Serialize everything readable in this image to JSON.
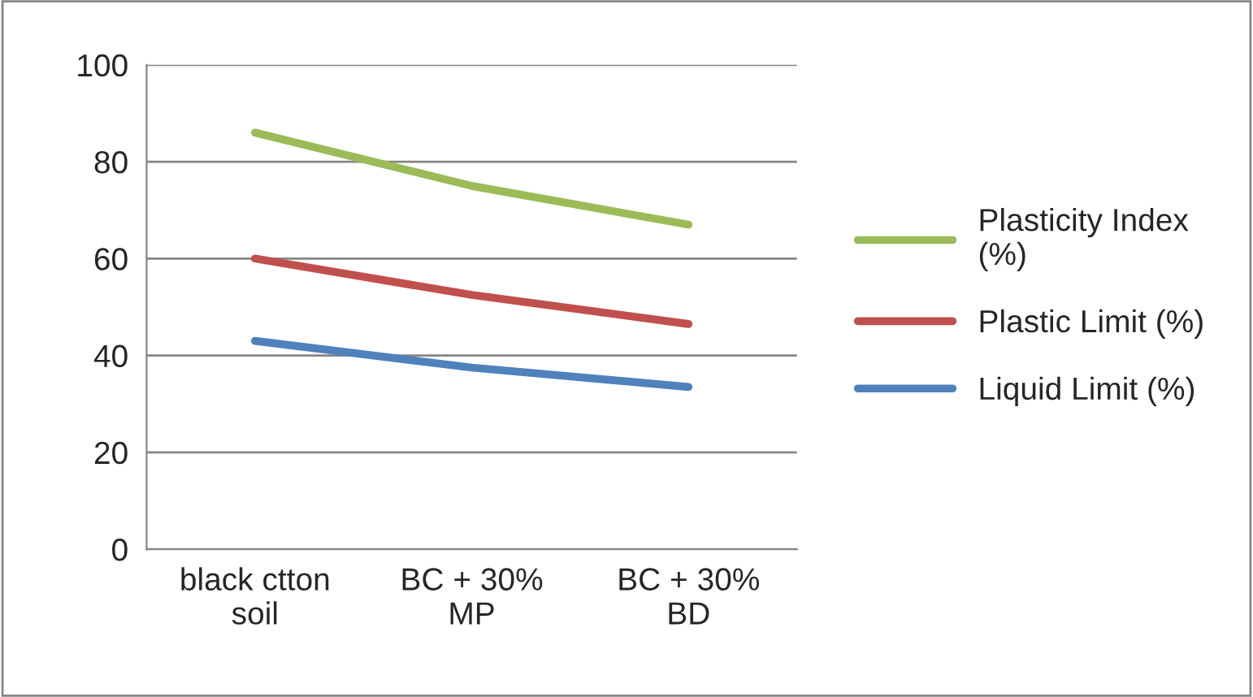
{
  "chart_data": {
    "type": "line",
    "categories": [
      "black ctton\nsoil",
      "BC + 30%\nMP",
      "BC + 30%\nBD"
    ],
    "series": [
      {
        "name": "Plasticity Index\n(%)",
        "color": "#9bbb59",
        "values": [
          86,
          75,
          67
        ]
      },
      {
        "name": "Plastic Limit (%)",
        "color": "#c0504d",
        "values": [
          60,
          52.5,
          46.5
        ]
      },
      {
        "name": "Liquid Limit (%)",
        "color": "#4f81bd",
        "values": [
          43,
          37.5,
          33.5
        ]
      }
    ],
    "ylim": [
      0,
      100
    ],
    "yticks": [
      0,
      20,
      40,
      60,
      80,
      100
    ],
    "grid": "y",
    "legend": "right",
    "marker": "none",
    "line_style": "solid"
  }
}
